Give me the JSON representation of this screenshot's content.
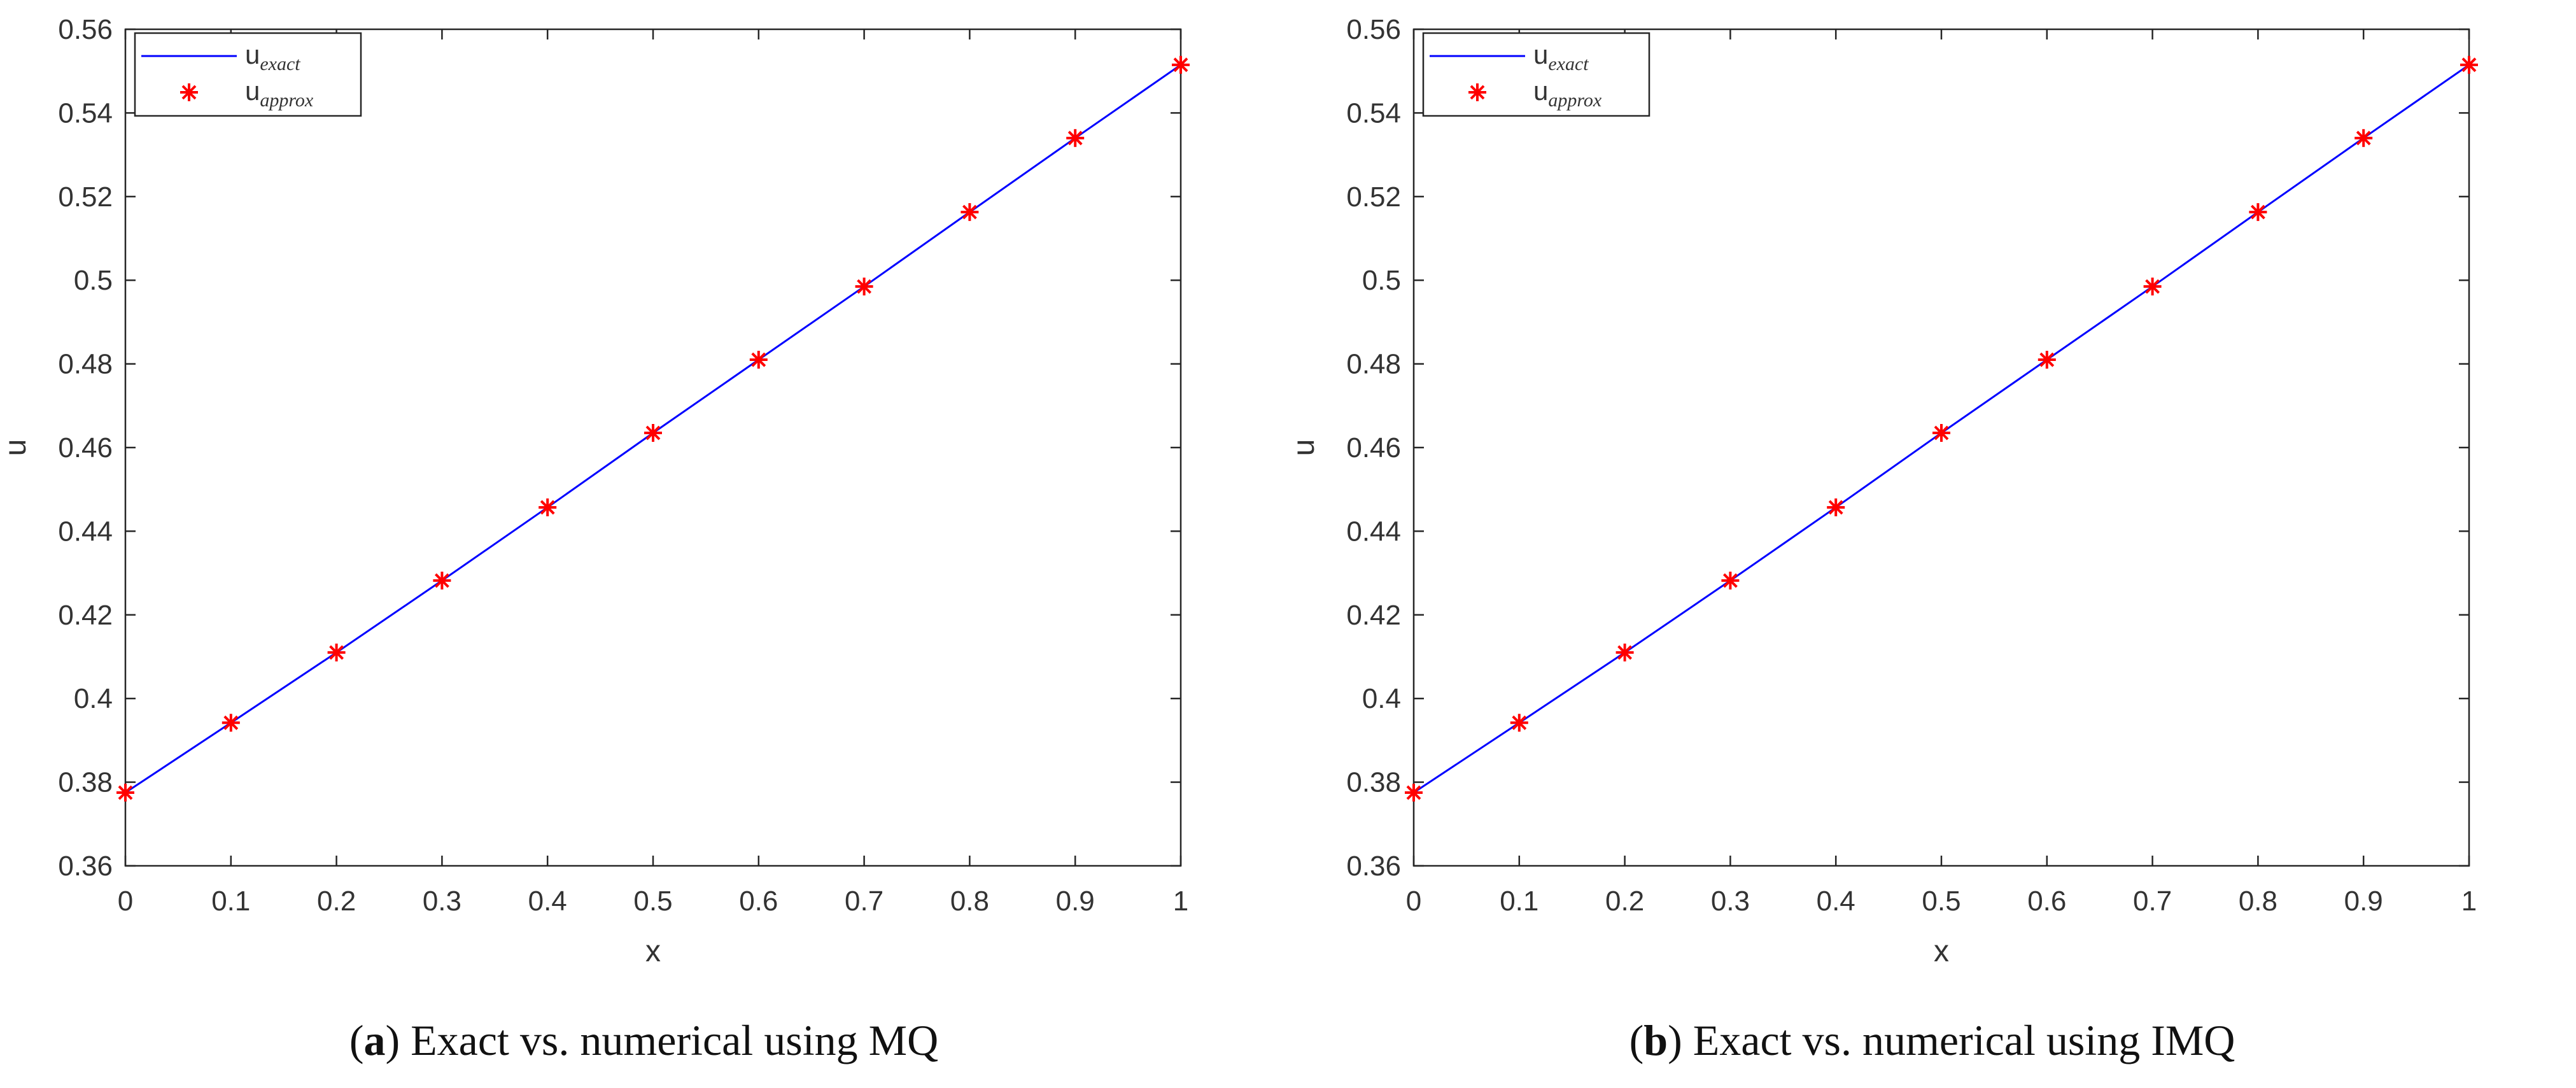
{
  "colors": {
    "exact_line": "#0000ff",
    "approx_marker": "#ff0000",
    "axes": "#262626",
    "text": "#333333"
  },
  "chart_data": [
    {
      "type": "line",
      "xlabel": "x",
      "ylabel": "u",
      "xlim": [
        0,
        1
      ],
      "ylim": [
        0.36,
        0.56
      ],
      "xticks": [
        0,
        0.1,
        0.2,
        0.3,
        0.4,
        0.5,
        0.6,
        0.7,
        0.8,
        0.9,
        1
      ],
      "xtick_labels": [
        "0",
        "0.1",
        "0.2",
        "0.3",
        "0.4",
        "0.5",
        "0.6",
        "0.7",
        "0.8",
        "0.9",
        "1"
      ],
      "yticks": [
        0.36,
        0.38,
        0.4,
        0.42,
        0.44,
        0.46,
        0.48,
        0.5,
        0.52,
        0.54,
        0.56
      ],
      "ytick_labels": [
        "0.36",
        "0.38",
        "0.4",
        "0.42",
        "0.44",
        "0.46",
        "0.48",
        "0.5",
        "0.52",
        "0.54",
        "0.56"
      ],
      "grid": false,
      "legend": {
        "placement": "top-left",
        "entries": [
          {
            "base": "u",
            "sub": "exact"
          },
          {
            "base": "u",
            "sub": "approx"
          }
        ]
      },
      "series": [
        {
          "name": "u_exact",
          "style": "line",
          "x": [
            0,
            0.1,
            0.2,
            0.3,
            0.4,
            0.5,
            0.6,
            0.7,
            0.8,
            0.9,
            1
          ],
          "values": [
            0.3775,
            0.3942,
            0.411,
            0.4282,
            0.4457,
            0.4635,
            0.481,
            0.4985,
            0.5163,
            0.534,
            0.5515
          ]
        },
        {
          "name": "u_approx",
          "style": "marker",
          "x": [
            0,
            0.1,
            0.2,
            0.3,
            0.4,
            0.5,
            0.6,
            0.7,
            0.8,
            0.9,
            1
          ],
          "values": [
            0.3775,
            0.3942,
            0.411,
            0.4282,
            0.4457,
            0.4635,
            0.481,
            0.4985,
            0.5163,
            0.534,
            0.5515
          ]
        }
      ],
      "caption": {
        "label": "a",
        "text": "Exact vs. numerical using MQ"
      }
    },
    {
      "type": "line",
      "xlabel": "x",
      "ylabel": "u",
      "xlim": [
        0,
        1
      ],
      "ylim": [
        0.36,
        0.56
      ],
      "xticks": [
        0,
        0.1,
        0.2,
        0.3,
        0.4,
        0.5,
        0.6,
        0.7,
        0.8,
        0.9,
        1
      ],
      "xtick_labels": [
        "0",
        "0.1",
        "0.2",
        "0.3",
        "0.4",
        "0.5",
        "0.6",
        "0.7",
        "0.8",
        "0.9",
        "1"
      ],
      "yticks": [
        0.36,
        0.38,
        0.4,
        0.42,
        0.44,
        0.46,
        0.48,
        0.5,
        0.52,
        0.54,
        0.56
      ],
      "ytick_labels": [
        "0.36",
        "0.38",
        "0.4",
        "0.42",
        "0.44",
        "0.46",
        "0.48",
        "0.5",
        "0.52",
        "0.54",
        "0.56"
      ],
      "grid": false,
      "legend": {
        "placement": "top-left",
        "entries": [
          {
            "base": "u",
            "sub": "exact"
          },
          {
            "base": "u",
            "sub": "approx"
          }
        ]
      },
      "series": [
        {
          "name": "u_exact",
          "style": "line",
          "x": [
            0,
            0.1,
            0.2,
            0.3,
            0.4,
            0.5,
            0.6,
            0.7,
            0.8,
            0.9,
            1
          ],
          "values": [
            0.3775,
            0.3942,
            0.411,
            0.4282,
            0.4457,
            0.4635,
            0.481,
            0.4985,
            0.5163,
            0.534,
            0.5515
          ]
        },
        {
          "name": "u_approx",
          "style": "marker",
          "x": [
            0,
            0.1,
            0.2,
            0.3,
            0.4,
            0.5,
            0.6,
            0.7,
            0.8,
            0.9,
            1
          ],
          "values": [
            0.3775,
            0.3942,
            0.411,
            0.4282,
            0.4457,
            0.4635,
            0.481,
            0.4985,
            0.5163,
            0.534,
            0.5515
          ]
        }
      ],
      "caption": {
        "label": "b",
        "text": "Exact vs. numerical using IMQ"
      }
    }
  ]
}
